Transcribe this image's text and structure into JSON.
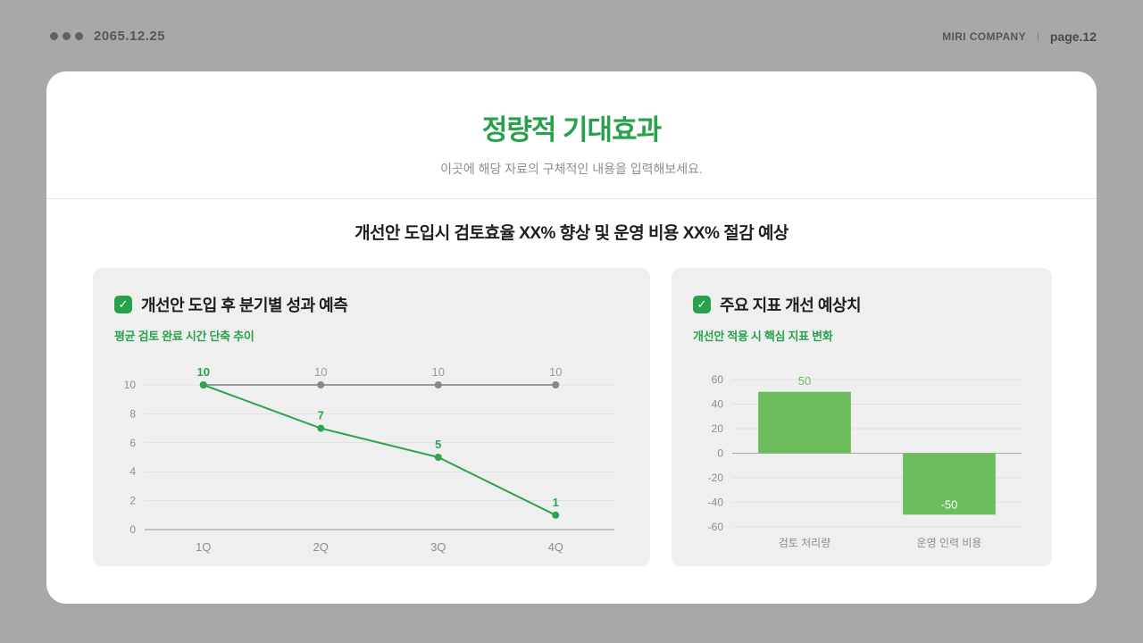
{
  "colors": {
    "page_bg": "#a8a8a8",
    "accent_green": "#27a24b",
    "bar_green": "#6cbd5c",
    "gray_series": "#9b9b9b",
    "panel_bg": "#efefef"
  },
  "topbar": {
    "date": "2065.12.25",
    "company": "MIRI COMPANY",
    "separator": "|",
    "page": "page.12"
  },
  "slide": {
    "title": "정량적 기대효과",
    "subtitle": "이곳에 해당 자료의 구체적인 내용을 입력해보세요.",
    "statement": "개선안 도입시 검토효율 XX% 향상 및 운영 비용 XX% 절감 예상"
  },
  "panels": [
    {
      "check": "✓",
      "title": "개선안 도입 후 분기별 성과 예측",
      "subtitle": "평균 검토 완료 시간 단축 추이"
    },
    {
      "check": "✓",
      "title": "주요 지표 개선 예상치",
      "subtitle": "개선안 적용 시 핵심 지표 변화"
    }
  ],
  "chart_data": [
    {
      "type": "line",
      "title": "평균 검토 완료 시간 단축 추이",
      "categories": [
        "1Q",
        "2Q",
        "3Q",
        "4Q"
      ],
      "series": [
        {
          "name": "gray-flat-series",
          "values": [
            10,
            10,
            10,
            10
          ],
          "color": "#9b9b9b",
          "point_color": "#888888",
          "label_color": "#9b9b9b",
          "label_bold": false
        },
        {
          "name": "green-declining-series",
          "values": [
            10,
            7,
            5,
            1
          ],
          "color": "#2da44e",
          "point_color": "#2da44e",
          "label_color": "#2da44e",
          "label_bold": true
        }
      ],
      "ylim": [
        0,
        10
      ],
      "yticks": [
        0,
        2,
        4,
        6,
        8,
        10
      ],
      "grid": true,
      "legend": "none"
    },
    {
      "type": "bar",
      "title": "개선안 적용 시 핵심 지표 변화",
      "categories": [
        "검토 처리량",
        "운영 인력 비용"
      ],
      "values": [
        50,
        -50
      ],
      "labels": [
        "50",
        "-50"
      ],
      "ylim": [
        -60,
        60
      ],
      "yticks": [
        60,
        40,
        20,
        0,
        -20,
        -40,
        -60
      ],
      "bar_color": "#6cbd5c",
      "positive_label_color": "#6cbd5c",
      "negative_label_color": "#ffffff",
      "grid": true,
      "legend": "none"
    }
  ]
}
